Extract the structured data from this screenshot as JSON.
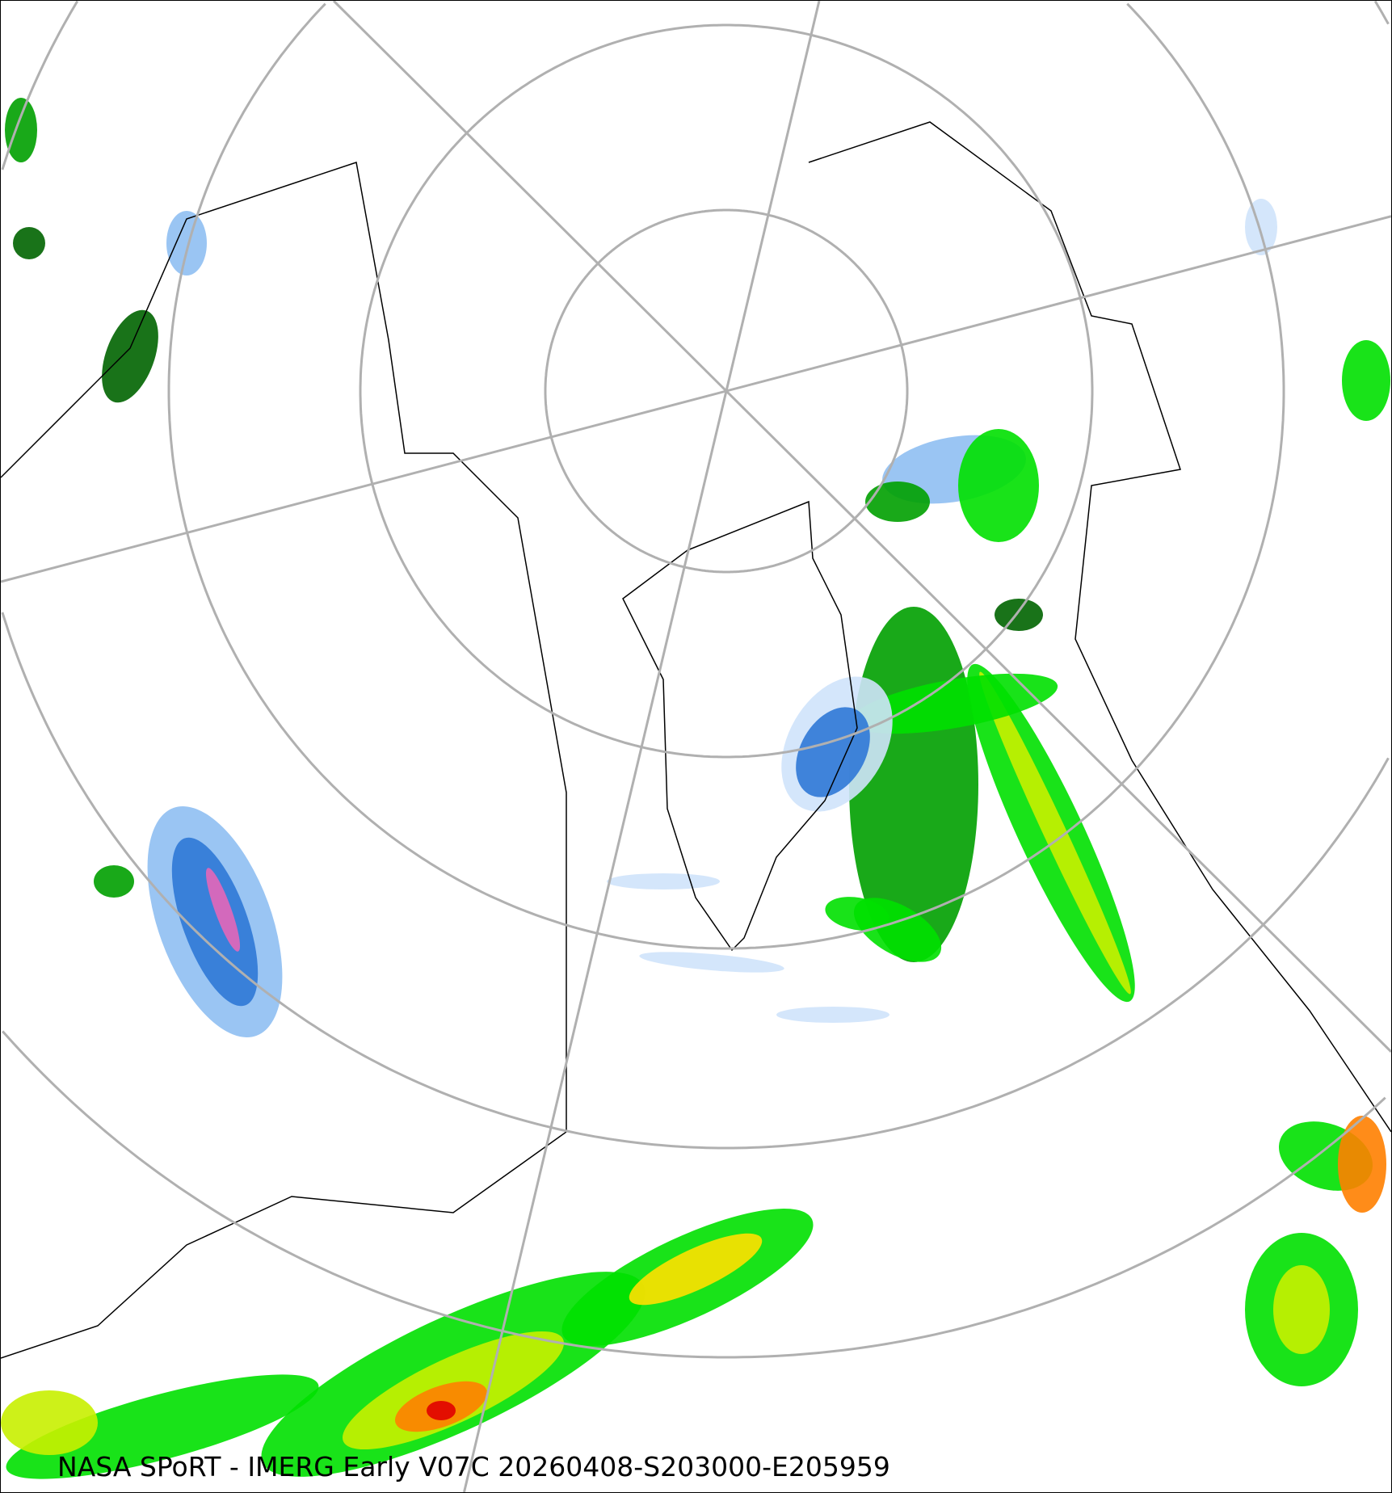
{
  "caption": "NASA SPoRT - IMERG Early V07C 20260408-S203000-E205959",
  "map": {
    "projection": "north-polar-stereographic",
    "graticule_color": "#b0b0b0",
    "coastline_color": "#000000",
    "precip_colors": {
      "light_snow": "#cfe3fb",
      "snow": "#8fbff2",
      "heavy_snow": "#2f78d6",
      "very_heavy_snow": "#e466b8",
      "light_rain": "#00a000",
      "rain": "#00e000",
      "moderate_rain": "#c8f000",
      "heavy_rain": "#ffe000",
      "very_heavy_rain": "#ff8000",
      "extreme_rain": "#e00000",
      "dark_rain": "#006400"
    }
  }
}
